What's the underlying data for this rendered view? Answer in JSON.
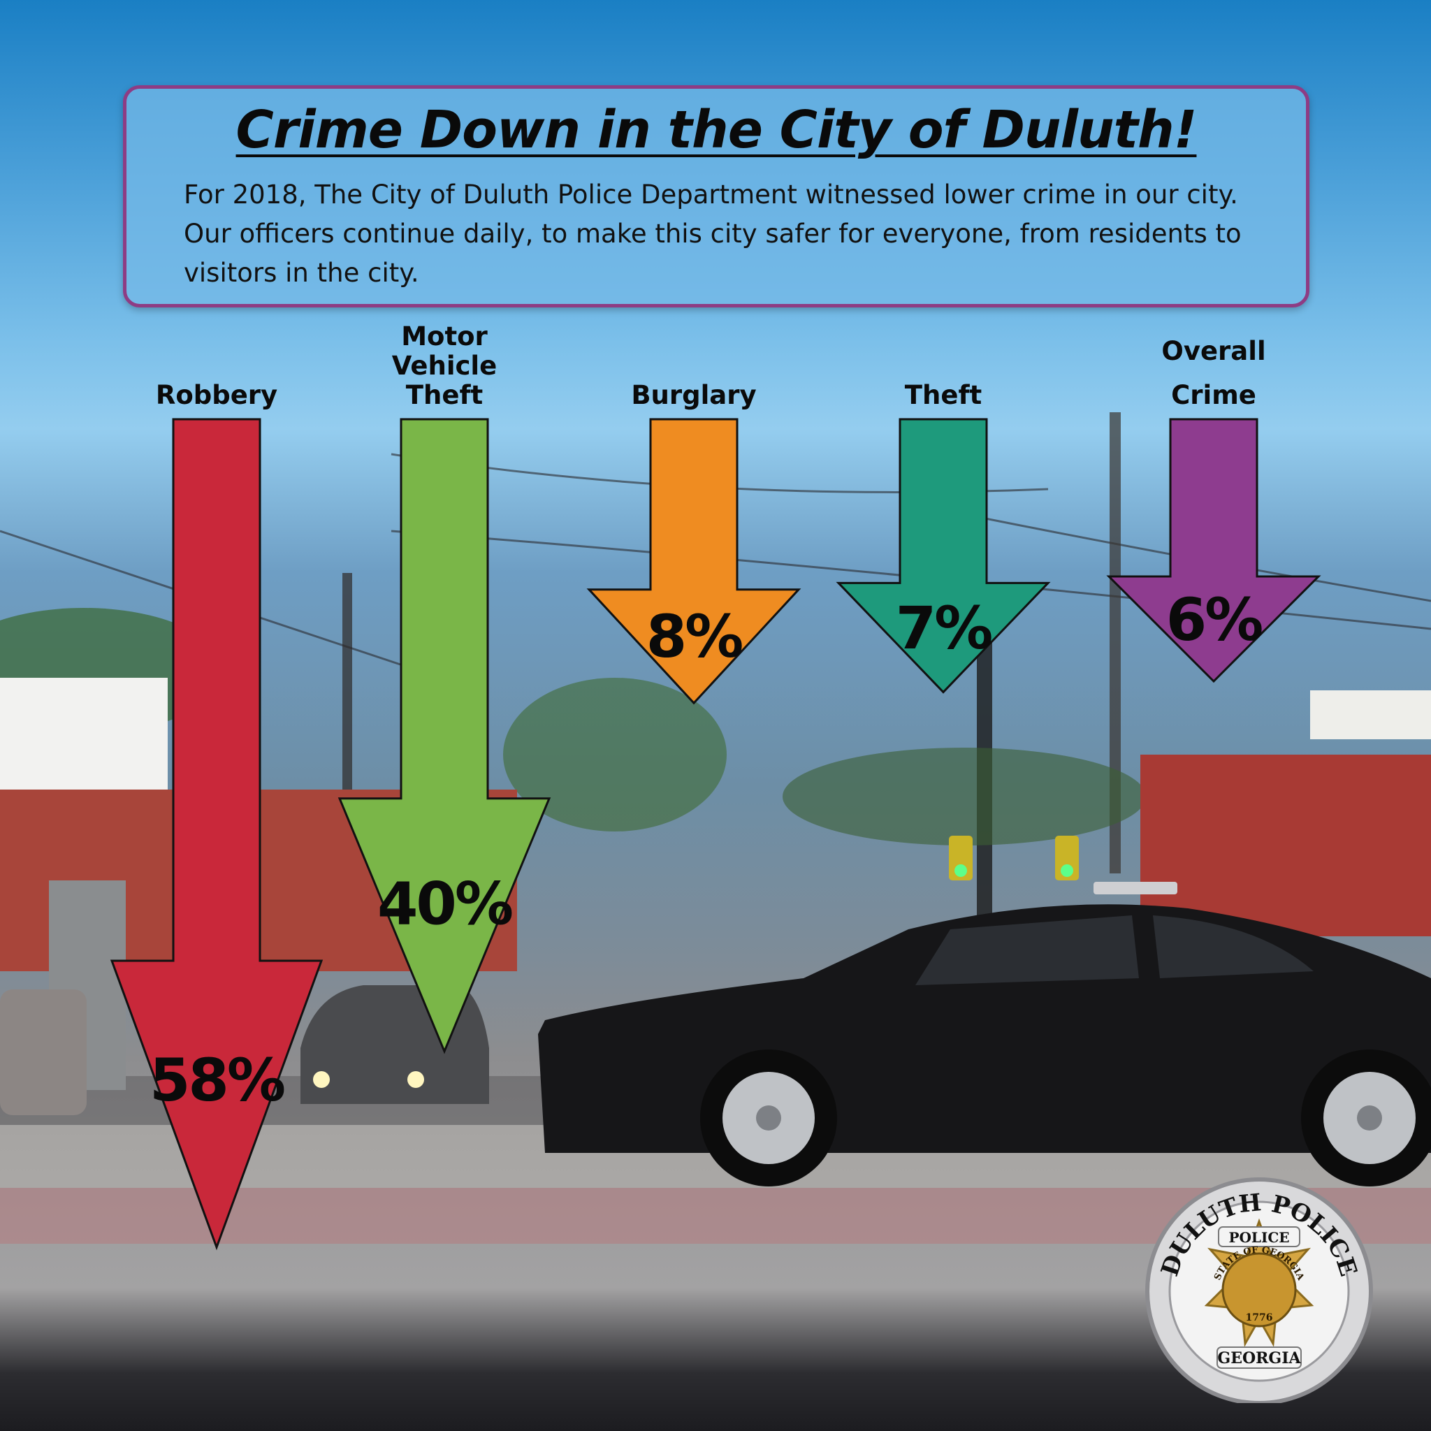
{
  "headline": "Crime Down in the City of Duluth!",
  "intro": "For 2018, The City of Duluth Police Department witnessed lower crime in our city. Our officers continue daily, to make this city safer for everyone, from residents to visitors in the city.",
  "colors": {
    "frame": "#8e3c84",
    "robbery": "#c9283a",
    "motor_vehicle_theft": "#7ab648",
    "burglary": "#ef8c21",
    "theft": "#1e9a7c",
    "overall_crime": "#8e3c8f"
  },
  "chart_data": {
    "type": "bar",
    "unit": "%",
    "categories": [
      {
        "label_lines": [
          "Robbery"
        ],
        "value": 58,
        "display": "58%",
        "color": "#c9283a"
      },
      {
        "label_lines": [
          "Motor",
          "Vehicle",
          "Theft"
        ],
        "value": 40,
        "display": "40%",
        "color": "#7ab648"
      },
      {
        "label_lines": [
          "Burglary"
        ],
        "value": 8,
        "display": "8%",
        "color": "#ef8c21"
      },
      {
        "label_lines": [
          "Theft"
        ],
        "value": 7,
        "display": "7%",
        "color": "#1e9a7c"
      },
      {
        "label_lines": [
          "Overall",
          "Crime"
        ],
        "value": 6,
        "display": "6%",
        "color": "#8e3c8f"
      }
    ],
    "title": "",
    "xlabel": "",
    "ylabel": ""
  },
  "badge": {
    "ring_text": "DULUTH POLICE",
    "ribbon_text": "POLICE",
    "seal_text": "STATE OF GEORGIA",
    "year": "1776",
    "bottom_text": "GEORGIA"
  }
}
